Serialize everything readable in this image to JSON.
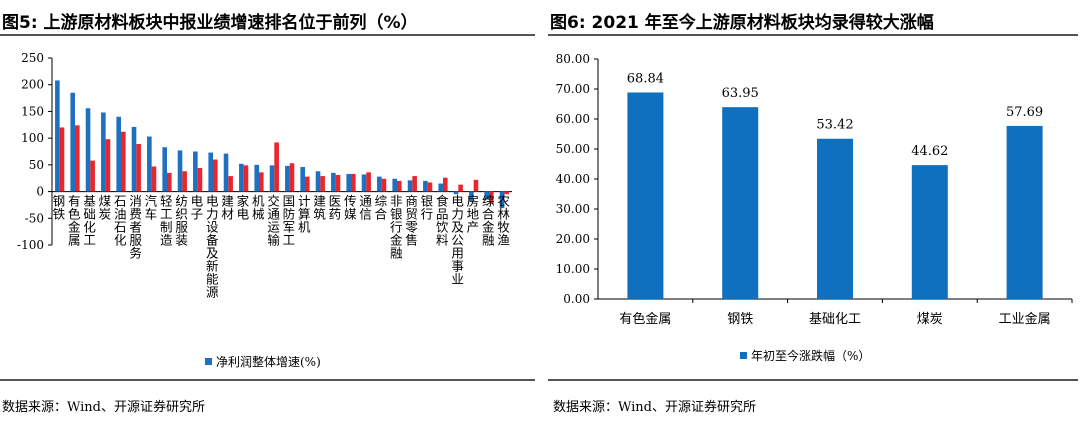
{
  "left_figure": {
    "title": "图5:  上游原材料板块中报业绩增速排名位于前列（%）",
    "source": "数据来源：Wind、开源证券研究所"
  },
  "right_figure": {
    "title": "图6:  2021 年至今上游原材料板块均录得较大涨幅",
    "source": "数据来源：Wind、开源证券研究所"
  },
  "colors": {
    "blue": "#1070c0",
    "red": "#e8262d",
    "left_legend_blue": "#1e70c0"
  },
  "chart_data": [
    {
      "type": "bar",
      "categories": [
        "钢铁",
        "有色金属",
        "基础化工",
        "煤炭",
        "石油石化",
        "消费者服务",
        "汽车",
        "轻工制造",
        "纺织服装",
        "电子",
        "电力设备及新能源",
        "建材",
        "家电",
        "机械",
        "交通运输",
        "国防军工",
        "计算机",
        "建筑",
        "医药",
        "传媒",
        "通信",
        "综合",
        "非银行金融",
        "商贸零售",
        "银行",
        "食品饮料",
        "电力及公用事业",
        "房地产",
        "综合金融",
        "农林牧渔"
      ],
      "series": [
        {
          "name": "净利润整体增速(%)",
          "color": "#1e70c0",
          "values": [
            208,
            185,
            156,
            148,
            140,
            121,
            103,
            83,
            77,
            75,
            73,
            71,
            52,
            50,
            49,
            48,
            46,
            38,
            35,
            33,
            32,
            28,
            24,
            21,
            20,
            15,
            -5,
            -18,
            -15,
            -31
          ]
        },
        {
          "name": "",
          "color": "#e8262d",
          "values": [
            120,
            124,
            58,
            98,
            112,
            89,
            47,
            35,
            38,
            44,
            60,
            29,
            49,
            36,
            92,
            53,
            28,
            29,
            31,
            33,
            36,
            24,
            20,
            29,
            17,
            26,
            13,
            22,
            -23,
            -5
          ]
        }
      ],
      "ylim": [
        -100,
        250
      ],
      "yticks": [
        -100,
        -50,
        0,
        50,
        100,
        150,
        200,
        250
      ],
      "legend": "bottom-center"
    },
    {
      "type": "bar",
      "categories": [
        "有色金属",
        "钢铁",
        "基础化工",
        "煤炭",
        "工业金属"
      ],
      "series": [
        {
          "name": "年初至今涨跌幅（%）",
          "color": "#1070c0",
          "values": [
            68.84,
            63.95,
            53.42,
            44.62,
            57.69
          ]
        }
      ],
      "value_labels": [
        "68.84",
        "63.95",
        "53.42",
        "44.62",
        "57.69"
      ],
      "ylim": [
        0,
        80
      ],
      "yticks": [
        "0.00",
        "10.00",
        "20.00",
        "30.00",
        "40.00",
        "50.00",
        "60.00",
        "70.00",
        "80.00"
      ],
      "legend": "bottom-center"
    }
  ]
}
